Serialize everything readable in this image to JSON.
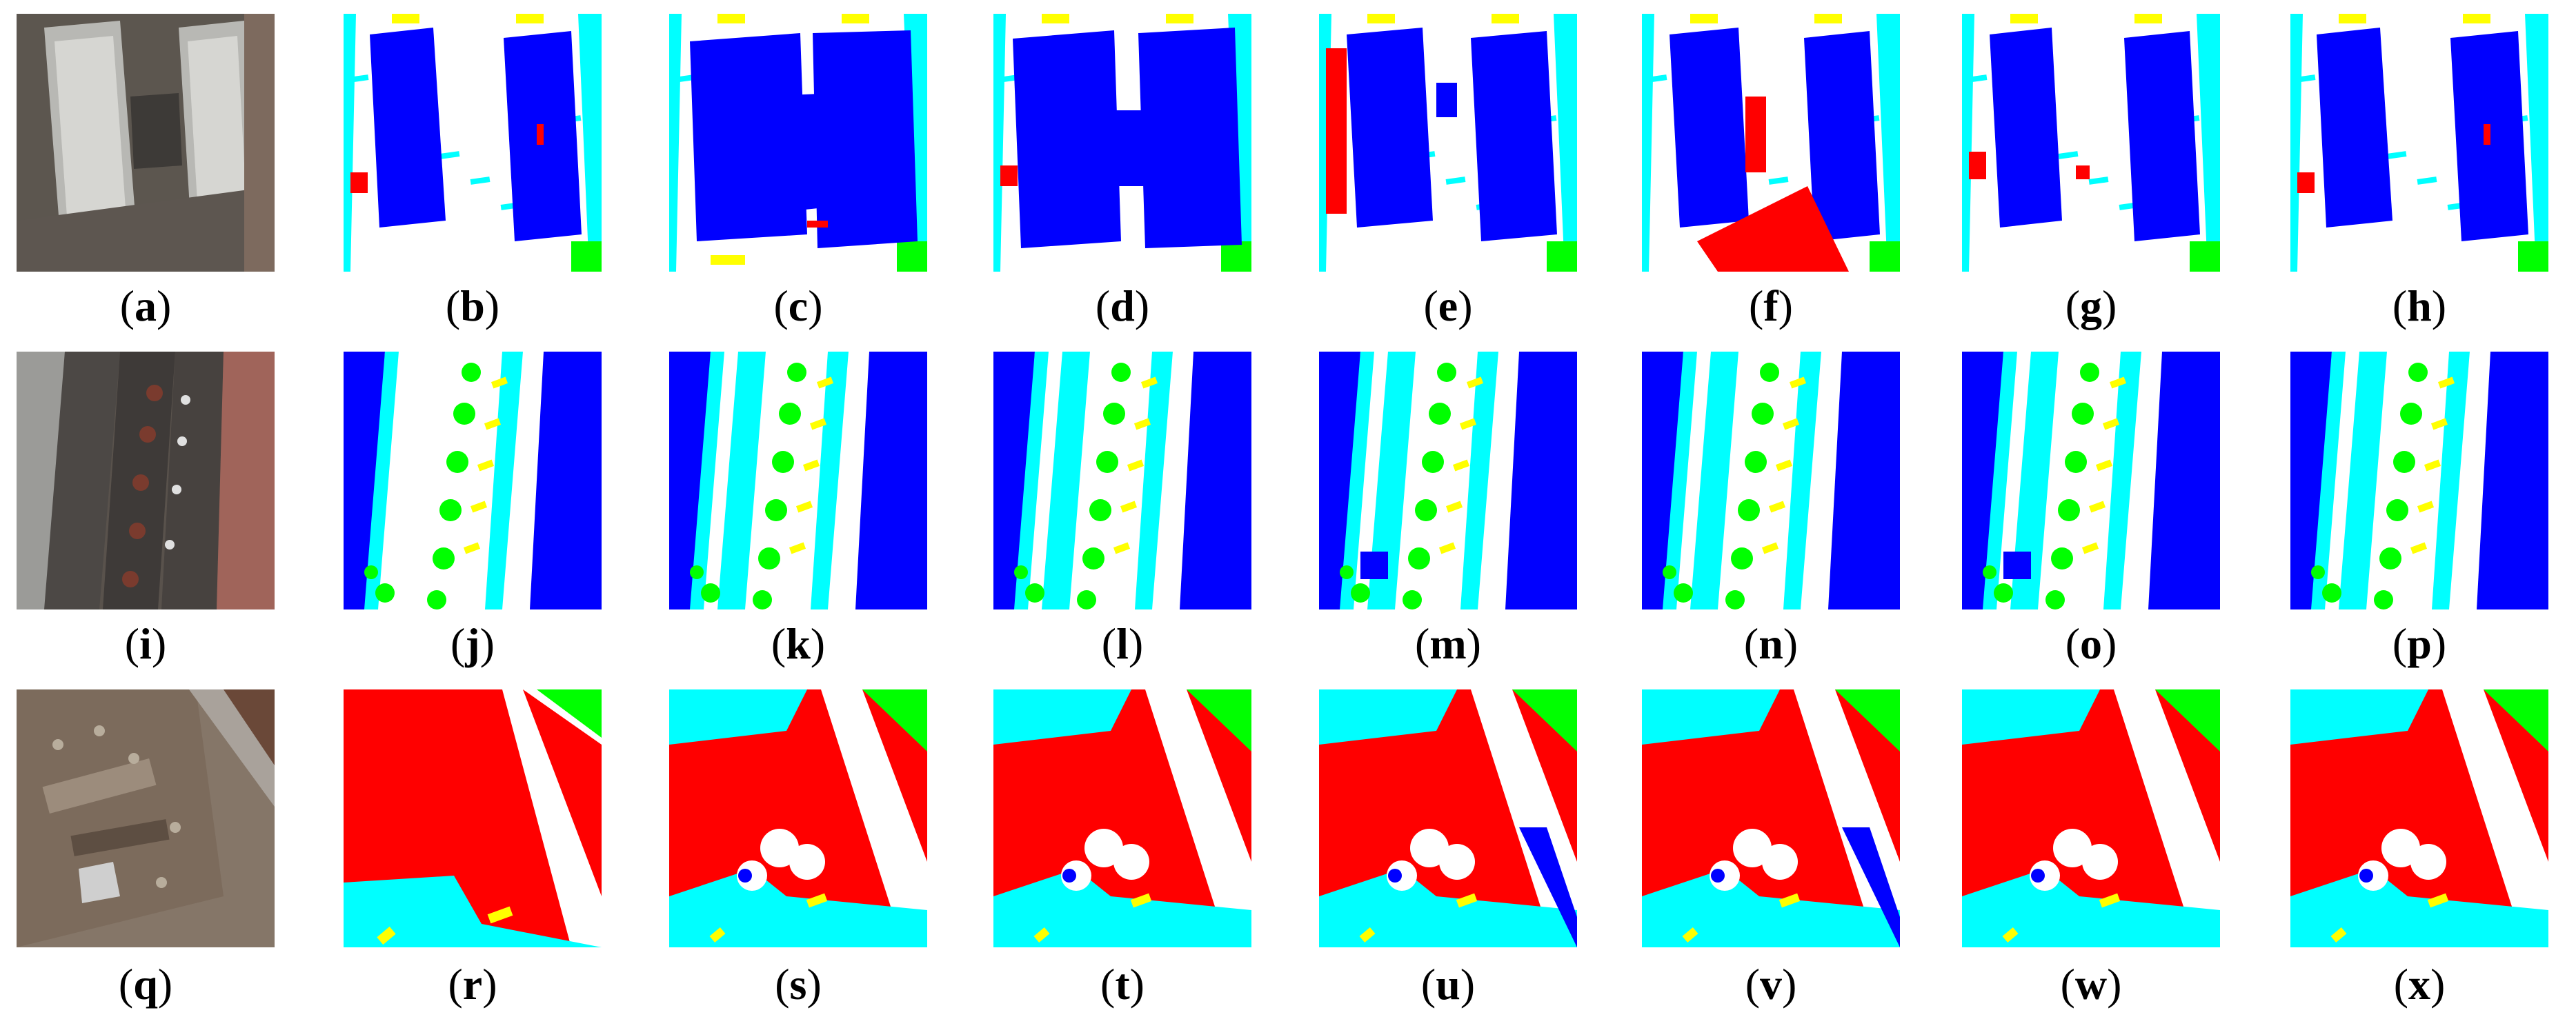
{
  "figure": {
    "panels": [
      {
        "id": "a",
        "label": "a",
        "type": "photo",
        "row": 0,
        "col": 0
      },
      {
        "id": "b",
        "label": "b",
        "type": "seg",
        "row": 0,
        "col": 1
      },
      {
        "id": "c",
        "label": "c",
        "type": "seg",
        "row": 0,
        "col": 2
      },
      {
        "id": "d",
        "label": "d",
        "type": "seg",
        "row": 0,
        "col": 3
      },
      {
        "id": "e",
        "label": "e",
        "type": "seg",
        "row": 0,
        "col": 4
      },
      {
        "id": "f",
        "label": "f",
        "type": "seg",
        "row": 0,
        "col": 5
      },
      {
        "id": "g",
        "label": "g",
        "type": "seg",
        "row": 0,
        "col": 6
      },
      {
        "id": "h",
        "label": "h",
        "type": "seg",
        "row": 0,
        "col": 7
      },
      {
        "id": "i",
        "label": "i",
        "type": "photo",
        "row": 1,
        "col": 0
      },
      {
        "id": "j",
        "label": "j",
        "type": "seg",
        "row": 1,
        "col": 1
      },
      {
        "id": "k",
        "label": "k",
        "type": "seg",
        "row": 1,
        "col": 2
      },
      {
        "id": "l",
        "label": "l",
        "type": "seg",
        "row": 1,
        "col": 3
      },
      {
        "id": "m",
        "label": "m",
        "type": "seg",
        "row": 1,
        "col": 4
      },
      {
        "id": "n",
        "label": "n",
        "type": "seg",
        "row": 1,
        "col": 5
      },
      {
        "id": "o",
        "label": "o",
        "type": "seg",
        "row": 1,
        "col": 6
      },
      {
        "id": "p",
        "label": "p",
        "type": "seg",
        "row": 1,
        "col": 7
      },
      {
        "id": "q",
        "label": "q",
        "type": "photo",
        "row": 2,
        "col": 0
      },
      {
        "id": "r",
        "label": "r",
        "type": "seg",
        "row": 2,
        "col": 1
      },
      {
        "id": "s",
        "label": "s",
        "type": "seg",
        "row": 2,
        "col": 2
      },
      {
        "id": "t",
        "label": "t",
        "type": "seg",
        "row": 2,
        "col": 3
      },
      {
        "id": "u",
        "label": "u",
        "type": "seg",
        "row": 2,
        "col": 4
      },
      {
        "id": "v",
        "label": "v",
        "type": "seg",
        "row": 2,
        "col": 5
      },
      {
        "id": "w",
        "label": "w",
        "type": "seg",
        "row": 2,
        "col": 6
      },
      {
        "id": "x",
        "label": "x",
        "type": "seg",
        "row": 2,
        "col": 7
      }
    ],
    "colors": {
      "building": "#0000ff",
      "low_vegetation": "#00ffff",
      "tree": "#00ff00",
      "car": "#ffff00",
      "clutter": "#ff0000",
      "impervious": "#ffffff"
    }
  }
}
